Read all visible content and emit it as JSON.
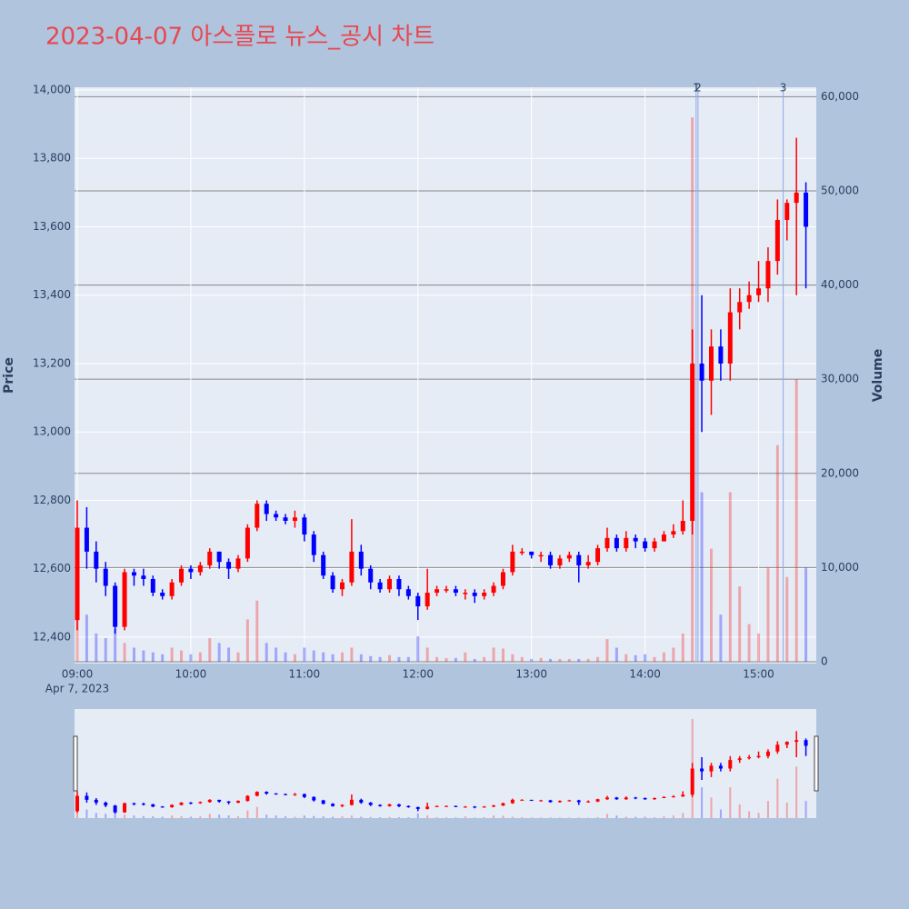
{
  "chart_data": {
    "type": "candlestick",
    "title": "2023-04-07 아스플로 뉴스_공시 차트",
    "ylabel": "Price",
    "y2label": "Volume",
    "x_sublabel": "Apr 7, 2023",
    "up_color": "#ff0000",
    "down_color": "#0000ff",
    "grid": true,
    "xlim": [
      "09:00",
      "15:30"
    ],
    "xticks": [
      "09:00",
      "10:00",
      "11:00",
      "12:00",
      "13:00",
      "14:00",
      "15:00"
    ],
    "ylim": [
      12328,
      14008
    ],
    "yticks": [
      {
        "value": 12400,
        "label": "12,400"
      },
      {
        "value": 12600,
        "label": "12,600"
      },
      {
        "value": 12800,
        "label": "12,800"
      },
      {
        "value": 13000,
        "label": "13,000"
      },
      {
        "value": 13200,
        "label": "13,200"
      },
      {
        "value": 13400,
        "label": "13,400"
      },
      {
        "value": 13600,
        "label": "13,600"
      },
      {
        "value": 13800,
        "label": "13,800"
      },
      {
        "value": 14000,
        "label": "14,000"
      }
    ],
    "y2lim": [
      0,
      61000
    ],
    "y2ticks": [
      0,
      {
        "value": 10000,
        "label": "10,000"
      },
      {
        "value": 20000,
        "label": "20,000"
      },
      {
        "value": 30000,
        "label": "30,000"
      },
      {
        "value": 40000,
        "label": "40,000"
      },
      {
        "value": 50000,
        "label": "50,000"
      },
      {
        "value": 60000,
        "label": "60,000"
      }
    ],
    "annotations": [
      {
        "x": "14:27",
        "label": "1"
      },
      {
        "x": "14:28",
        "label": "2"
      },
      {
        "x": "15:13",
        "label": "3"
      }
    ],
    "x": [
      "09:00",
      "09:05",
      "09:10",
      "09:15",
      "09:20",
      "09:25",
      "09:30",
      "09:35",
      "09:40",
      "09:45",
      "09:50",
      "09:55",
      "10:00",
      "10:05",
      "10:10",
      "10:15",
      "10:20",
      "10:25",
      "10:30",
      "10:35",
      "10:40",
      "10:45",
      "10:50",
      "10:55",
      "11:00",
      "11:05",
      "11:10",
      "11:15",
      "11:20",
      "11:25",
      "11:30",
      "11:35",
      "11:40",
      "11:45",
      "11:50",
      "11:55",
      "12:00",
      "12:05",
      "12:10",
      "12:15",
      "12:20",
      "12:25",
      "12:30",
      "12:35",
      "12:40",
      "12:45",
      "12:50",
      "12:55",
      "13:00",
      "13:05",
      "13:10",
      "13:15",
      "13:20",
      "13:25",
      "13:30",
      "13:35",
      "13:40",
      "13:45",
      "13:50",
      "13:55",
      "14:00",
      "14:05",
      "14:10",
      "14:15",
      "14:20",
      "14:25",
      "14:30",
      "14:35",
      "14:40",
      "14:45",
      "14:50",
      "14:55",
      "15:00",
      "15:05",
      "15:10",
      "15:15",
      "15:20",
      "15:25"
    ],
    "open": [
      12450,
      12720,
      12650,
      12600,
      12550,
      12430,
      12590,
      12580,
      12570,
      12530,
      12520,
      12560,
      12600,
      12590,
      12610,
      12650,
      12620,
      12600,
      12630,
      12720,
      12790,
      12760,
      12750,
      12740,
      12750,
      12700,
      12640,
      12580,
      12540,
      12560,
      12650,
      12600,
      12560,
      12540,
      12570,
      12540,
      12520,
      12490,
      12530,
      12540,
      12540,
      12530,
      12530,
      12520,
      12530,
      12550,
      12590,
      12650,
      12650,
      12640,
      12640,
      12610,
      12630,
      12640,
      12610,
      12620,
      12660,
      12690,
      12660,
      12690,
      12680,
      12660,
      12680,
      12700,
      12710,
      12740,
      13200,
      13150,
      13250,
      13200,
      13350,
      13380,
      13400,
      13420,
      13500,
      13620,
      13670,
      13700
    ],
    "high": [
      12800,
      12780,
      12680,
      12620,
      12560,
      12600,
      12600,
      12600,
      12580,
      12540,
      12570,
      12610,
      12610,
      12620,
      12660,
      12650,
      12630,
      12640,
      12730,
      12800,
      12800,
      12770,
      12760,
      12770,
      12760,
      12710,
      12650,
      12590,
      12570,
      12745,
      12670,
      12610,
      12570,
      12580,
      12580,
      12550,
      12530,
      12600,
      12550,
      12550,
      12550,
      12540,
      12540,
      12540,
      12560,
      12600,
      12670,
      12660,
      12650,
      12650,
      12650,
      12640,
      12650,
      12650,
      12640,
      12670,
      12720,
      12700,
      12710,
      12700,
      12690,
      12690,
      12710,
      12730,
      12800,
      13300,
      13400,
      13300,
      13300,
      13420,
      13420,
      13440,
      13500,
      13540,
      13680,
      13680,
      13860,
      13730
    ],
    "low": [
      12420,
      12600,
      12560,
      12520,
      12410,
      12420,
      12550,
      12550,
      12520,
      12510,
      12510,
      12550,
      12570,
      12580,
      12600,
      12600,
      12570,
      12590,
      12620,
      12710,
      12740,
      12740,
      12730,
      12720,
      12680,
      12620,
      12570,
      12530,
      12520,
      12550,
      12580,
      12540,
      12530,
      12530,
      12520,
      12510,
      12450,
      12480,
      12520,
      12530,
      12520,
      12510,
      12500,
      12510,
      12520,
      12540,
      12580,
      12640,
      12630,
      12620,
      12600,
      12600,
      12620,
      12560,
      12600,
      12610,
      12650,
      12650,
      12650,
      12660,
      12650,
      12650,
      12680,
      12690,
      12700,
      12700,
      13000,
      13050,
      13150,
      13150,
      13300,
      13360,
      13380,
      13380,
      13460,
      13560,
      13400,
      13420
    ],
    "close": [
      12720,
      12650,
      12600,
      12550,
      12430,
      12590,
      12580,
      12570,
      12530,
      12520,
      12560,
      12600,
      12590,
      12610,
      12650,
      12620,
      12600,
      12630,
      12720,
      12790,
      12760,
      12750,
      12740,
      12750,
      12700,
      12640,
      12580,
      12540,
      12560,
      12650,
      12600,
      12560,
      12540,
      12570,
      12540,
      12520,
      12490,
      12530,
      12540,
      12540,
      12530,
      12530,
      12520,
      12530,
      12550,
      12590,
      12650,
      12650,
      12640,
      12640,
      12610,
      12630,
      12640,
      12610,
      12620,
      12660,
      12690,
      12660,
      12690,
      12680,
      12660,
      12680,
      12700,
      12710,
      12740,
      13200,
      13150,
      13250,
      13200,
      13350,
      13380,
      13400,
      13420,
      13500,
      13620,
      13670,
      13700,
      13600
    ],
    "volume": [
      7000,
      5000,
      3000,
      2500,
      3500,
      2000,
      1500,
      1200,
      1000,
      800,
      1500,
      1200,
      800,
      1000,
      2500,
      2000,
      1500,
      1000,
      4500,
      6500,
      2000,
      1500,
      1000,
      800,
      1500,
      1200,
      1000,
      800,
      1000,
      1500,
      800,
      600,
      500,
      700,
      500,
      500,
      2700,
      1500,
      500,
      400,
      400,
      1000,
      300,
      500,
      1500,
      1400,
      800,
      500,
      300,
      400,
      300,
      300,
      300,
      300,
      300,
      500,
      2400,
      1500,
      800,
      700,
      800,
      500,
      1000,
      1500,
      3000,
      57800,
      18000,
      12000,
      5000,
      18000,
      8000,
      4000,
      3000,
      10000,
      23000,
      9000,
      30000,
      10000
    ]
  }
}
